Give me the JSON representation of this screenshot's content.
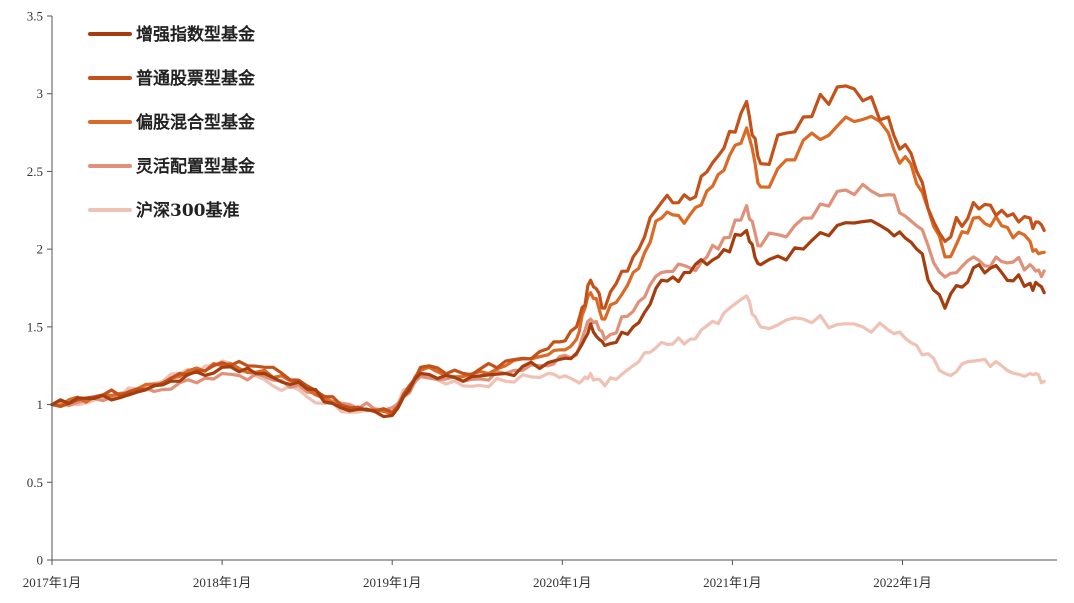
{
  "chart_data": {
    "type": "line",
    "title": "",
    "xlabel": "",
    "ylabel": "",
    "ylim": [
      0,
      3.5
    ],
    "yticks": [
      0,
      0.5,
      1,
      1.5,
      2,
      2.5,
      3,
      3.5
    ],
    "ytick_labels": [
      "0",
      "0.5",
      "1",
      "1.5",
      "2",
      "2.5",
      "3",
      "3.5"
    ],
    "xlim": [
      "2017-01",
      "2022-11"
    ],
    "xticks": [
      "2017-01",
      "2018-01",
      "2019-01",
      "2020-01",
      "2021-01",
      "2022-01"
    ],
    "xtick_labels": [
      "2017年1月",
      "2018年1月",
      "2019年1月",
      "2020年1月",
      "2021年1月",
      "2022年1月"
    ],
    "grid": false,
    "legend_position": "top-left",
    "series": [
      {
        "name": "增强指数型基金",
        "color": "#A63D0F",
        "points": [
          [
            "2017-01",
            1.0
          ],
          [
            "2017-04",
            1.04
          ],
          [
            "2017-07",
            1.08
          ],
          [
            "2017-10",
            1.15
          ],
          [
            "2018-01",
            1.24
          ],
          [
            "2018-04",
            1.2
          ],
          [
            "2018-07",
            1.1
          ],
          [
            "2018-10",
            0.96
          ],
          [
            "2019-01",
            0.93
          ],
          [
            "2019-03",
            1.2
          ],
          [
            "2019-06",
            1.15
          ],
          [
            "2019-09",
            1.2
          ],
          [
            "2019-12",
            1.27
          ],
          [
            "2020-02",
            1.33
          ],
          [
            "2020-03",
            1.52
          ],
          [
            "2020-04",
            1.38
          ],
          [
            "2020-06",
            1.5
          ],
          [
            "2020-08",
            1.8
          ],
          [
            "2020-10",
            1.85
          ],
          [
            "2020-12",
            1.95
          ],
          [
            "2021-02",
            2.12
          ],
          [
            "2021-03",
            1.9
          ],
          [
            "2021-06",
            2.0
          ],
          [
            "2021-09",
            2.17
          ],
          [
            "2021-12",
            2.12
          ],
          [
            "2022-02",
            2.0
          ],
          [
            "2022-04",
            1.62
          ],
          [
            "2022-06",
            1.88
          ],
          [
            "2022-08",
            1.85
          ],
          [
            "2022-10",
            1.78
          ],
          [
            "2022-11",
            1.72
          ]
        ]
      },
      {
        "name": "普通股票型基金",
        "color": "#C4501A",
        "points": [
          [
            "2017-01",
            1.0
          ],
          [
            "2017-04",
            1.05
          ],
          [
            "2017-07",
            1.1
          ],
          [
            "2017-10",
            1.2
          ],
          [
            "2018-01",
            1.27
          ],
          [
            "2018-04",
            1.24
          ],
          [
            "2018-07",
            1.12
          ],
          [
            "2018-10",
            0.98
          ],
          [
            "2019-01",
            0.95
          ],
          [
            "2019-03",
            1.24
          ],
          [
            "2019-06",
            1.2
          ],
          [
            "2019-09",
            1.28
          ],
          [
            "2019-12",
            1.36
          ],
          [
            "2020-02",
            1.5
          ],
          [
            "2020-03",
            1.8
          ],
          [
            "2020-04",
            1.62
          ],
          [
            "2020-06",
            1.95
          ],
          [
            "2020-08",
            2.3
          ],
          [
            "2020-10",
            2.32
          ],
          [
            "2020-12",
            2.6
          ],
          [
            "2021-02",
            2.95
          ],
          [
            "2021-03",
            2.55
          ],
          [
            "2021-06",
            2.85
          ],
          [
            "2021-09",
            3.05
          ],
          [
            "2021-12",
            2.85
          ],
          [
            "2022-02",
            2.5
          ],
          [
            "2022-04",
            2.05
          ],
          [
            "2022-06",
            2.3
          ],
          [
            "2022-08",
            2.25
          ],
          [
            "2022-10",
            2.2
          ],
          [
            "2022-11",
            2.12
          ]
        ]
      },
      {
        "name": "偏股混合型基金",
        "color": "#DA6A25",
        "points": [
          [
            "2017-01",
            1.0
          ],
          [
            "2017-04",
            1.05
          ],
          [
            "2017-07",
            1.1
          ],
          [
            "2017-10",
            1.18
          ],
          [
            "2018-01",
            1.25
          ],
          [
            "2018-04",
            1.22
          ],
          [
            "2018-07",
            1.1
          ],
          [
            "2018-10",
            0.97
          ],
          [
            "2019-01",
            0.94
          ],
          [
            "2019-03",
            1.22
          ],
          [
            "2019-06",
            1.18
          ],
          [
            "2019-09",
            1.25
          ],
          [
            "2019-12",
            1.32
          ],
          [
            "2020-02",
            1.42
          ],
          [
            "2020-03",
            1.72
          ],
          [
            "2020-04",
            1.55
          ],
          [
            "2020-06",
            1.85
          ],
          [
            "2020-08",
            2.2
          ],
          [
            "2020-10",
            2.22
          ],
          [
            "2020-12",
            2.48
          ],
          [
            "2021-02",
            2.78
          ],
          [
            "2021-03",
            2.4
          ],
          [
            "2021-06",
            2.7
          ],
          [
            "2021-09",
            2.85
          ],
          [
            "2021-12",
            2.75
          ],
          [
            "2022-02",
            2.42
          ],
          [
            "2022-04",
            1.95
          ],
          [
            "2022-06",
            2.2
          ],
          [
            "2022-08",
            2.15
          ],
          [
            "2022-10",
            2.05
          ],
          [
            "2022-11",
            1.98
          ]
        ]
      },
      {
        "name": "灵活配置型基金",
        "color": "#E0917A",
        "points": [
          [
            "2017-01",
            1.0
          ],
          [
            "2017-04",
            1.04
          ],
          [
            "2017-07",
            1.08
          ],
          [
            "2017-10",
            1.14
          ],
          [
            "2018-01",
            1.2
          ],
          [
            "2018-04",
            1.18
          ],
          [
            "2018-07",
            1.08
          ],
          [
            "2018-10",
            1.0
          ],
          [
            "2019-01",
            0.98
          ],
          [
            "2019-03",
            1.18
          ],
          [
            "2019-06",
            1.15
          ],
          [
            "2019-09",
            1.2
          ],
          [
            "2019-12",
            1.25
          ],
          [
            "2020-02",
            1.32
          ],
          [
            "2020-03",
            1.55
          ],
          [
            "2020-04",
            1.42
          ],
          [
            "2020-06",
            1.6
          ],
          [
            "2020-08",
            1.85
          ],
          [
            "2020-10",
            1.88
          ],
          [
            "2020-12",
            2.0
          ],
          [
            "2021-02",
            2.28
          ],
          [
            "2021-03",
            2.02
          ],
          [
            "2021-06",
            2.2
          ],
          [
            "2021-09",
            2.38
          ],
          [
            "2021-12",
            2.35
          ],
          [
            "2022-02",
            2.15
          ],
          [
            "2022-04",
            1.82
          ],
          [
            "2022-06",
            1.95
          ],
          [
            "2022-08",
            1.92
          ],
          [
            "2022-10",
            1.9
          ],
          [
            "2022-11",
            1.86
          ]
        ]
      },
      {
        "name": "沪深300基准",
        "color": "#F0C1B5",
        "points": [
          [
            "2017-01",
            1.0
          ],
          [
            "2017-04",
            1.03
          ],
          [
            "2017-07",
            1.1
          ],
          [
            "2017-10",
            1.2
          ],
          [
            "2018-01",
            1.28
          ],
          [
            "2018-04",
            1.16
          ],
          [
            "2018-07",
            1.05
          ],
          [
            "2018-10",
            0.95
          ],
          [
            "2019-01",
            0.98
          ],
          [
            "2019-03",
            1.2
          ],
          [
            "2019-06",
            1.12
          ],
          [
            "2019-09",
            1.15
          ],
          [
            "2019-12",
            1.2
          ],
          [
            "2020-02",
            1.15
          ],
          [
            "2020-03",
            1.2
          ],
          [
            "2020-04",
            1.12
          ],
          [
            "2020-06",
            1.25
          ],
          [
            "2020-08",
            1.4
          ],
          [
            "2020-10",
            1.42
          ],
          [
            "2020-12",
            1.52
          ],
          [
            "2021-02",
            1.7
          ],
          [
            "2021-03",
            1.5
          ],
          [
            "2021-06",
            1.55
          ],
          [
            "2021-09",
            1.52
          ],
          [
            "2021-12",
            1.48
          ],
          [
            "2022-02",
            1.38
          ],
          [
            "2022-04",
            1.2
          ],
          [
            "2022-06",
            1.28
          ],
          [
            "2022-08",
            1.25
          ],
          [
            "2022-10",
            1.2
          ],
          [
            "2022-11",
            1.15
          ]
        ]
      }
    ]
  }
}
